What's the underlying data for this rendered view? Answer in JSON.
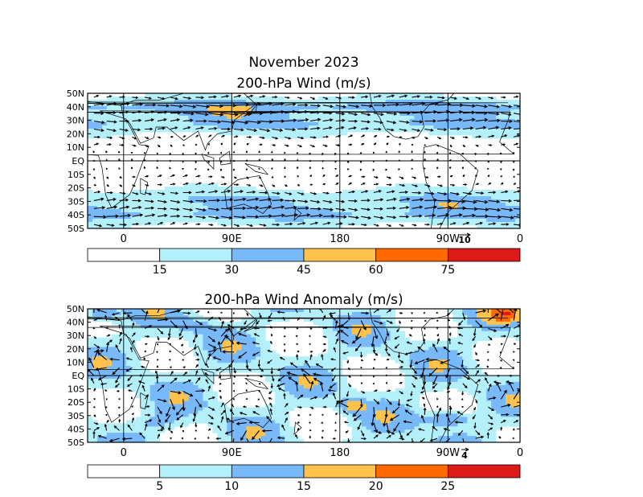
{
  "header": {
    "title": "November 2023"
  },
  "colors": {
    "land_outline": "#000000",
    "vector": "#000000",
    "frame": "#000000"
  },
  "chart_data": [
    {
      "type": "heatmap",
      "subtype": "wind-speed-shading-with-vectors",
      "title": "200-hPa Wind (m/s)",
      "x_ticks": [
        "0",
        "90E",
        "180",
        "90W",
        "0"
      ],
      "y_ticks": [
        "50N",
        "40N",
        "30N",
        "20N",
        "10N",
        "EQ",
        "10S",
        "20S",
        "30S",
        "40S",
        "50S"
      ],
      "lon_range": [
        0,
        360
      ],
      "lat_range": [
        -50,
        50
      ],
      "reference_vector": "10",
      "colorbar": {
        "labels": [
          "15",
          "30",
          "45",
          "60",
          "75"
        ],
        "colors": [
          "#ffffff",
          "#b4f0fa",
          "#78b9fa",
          "#ffc34d",
          "#ff6a00",
          "#dc1a1a"
        ]
      },
      "jets": [
        {
          "lat": 40,
          "peak": 50
        },
        {
          "lat": 28,
          "peak": 42
        },
        {
          "lat": -28,
          "peak": 40
        },
        {
          "lat": -40,
          "peak": 45
        }
      ],
      "maxima": [
        {
          "lon": 120,
          "lat": 35,
          "value": 52
        },
        {
          "lon": 300,
          "lat": -33,
          "value": 48
        }
      ]
    },
    {
      "type": "heatmap",
      "subtype": "wind-anomaly-shading-with-vectors",
      "title": "200-hPa Wind Anomaly (m/s)",
      "x_ticks": [
        "0",
        "90E",
        "180",
        "90W",
        "0"
      ],
      "y_ticks": [
        "50N",
        "40N",
        "30N",
        "20N",
        "10N",
        "EQ",
        "10S",
        "20S",
        "30S",
        "40S",
        "50S"
      ],
      "lon_range": [
        0,
        360
      ],
      "lat_range": [
        -50,
        50
      ],
      "reference_vector": "4",
      "colorbar": {
        "labels": [
          "5",
          "10",
          "15",
          "20",
          "25"
        ],
        "colors": [
          "#ffffff",
          "#b4f0fa",
          "#78b9fa",
          "#ffc34d",
          "#ff6a00",
          "#dc1a1a"
        ]
      },
      "maxima": [
        {
          "lon": 10,
          "lat": 46,
          "value": 20
        },
        {
          "lon": 350,
          "lat": 46,
          "value": 19
        },
        {
          "lon": 300,
          "lat": -32,
          "value": 21
        },
        {
          "lon": 220,
          "lat": -23,
          "value": 18
        }
      ]
    }
  ]
}
